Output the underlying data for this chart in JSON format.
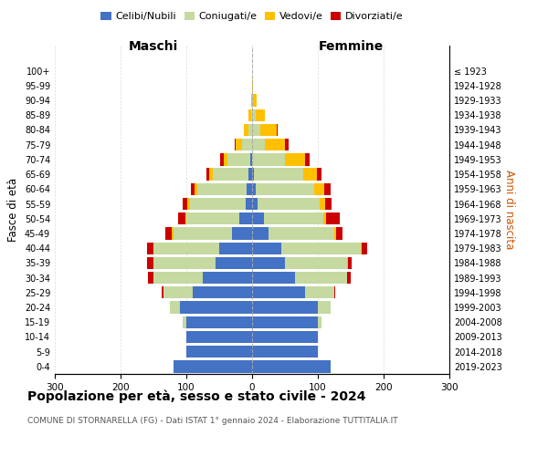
{
  "age_groups": [
    "100+",
    "95-99",
    "90-94",
    "85-89",
    "80-84",
    "75-79",
    "70-74",
    "65-69",
    "60-64",
    "55-59",
    "50-54",
    "45-49",
    "40-44",
    "35-39",
    "30-34",
    "25-29",
    "20-24",
    "15-19",
    "10-14",
    "5-9",
    "0-4"
  ],
  "birth_years": [
    "≤ 1923",
    "1924-1928",
    "1929-1933",
    "1934-1938",
    "1939-1943",
    "1944-1948",
    "1949-1953",
    "1954-1958",
    "1959-1963",
    "1964-1968",
    "1969-1973",
    "1974-1978",
    "1979-1983",
    "1984-1988",
    "1989-1993",
    "1994-1998",
    "1999-2003",
    "2004-2008",
    "2009-2013",
    "2014-2018",
    "2019-2023"
  ],
  "colors": {
    "celibi": "#4472c4",
    "coniugati": "#c5d9a0",
    "vedovi": "#ffc000",
    "divorziati": "#cc0000"
  },
  "m_cel": [
    120,
    100,
    100,
    100,
    110,
    90,
    75,
    55,
    50,
    30,
    20,
    10,
    8,
    5,
    3,
    0,
    0,
    0,
    0,
    0,
    0
  ],
  "m_con": [
    0,
    0,
    0,
    5,
    15,
    45,
    75,
    95,
    100,
    90,
    80,
    85,
    75,
    55,
    35,
    15,
    5,
    2,
    0,
    0,
    0
  ],
  "m_ved": [
    0,
    0,
    0,
    0,
    0,
    0,
    0,
    0,
    0,
    2,
    2,
    3,
    5,
    5,
    5,
    10,
    8,
    3,
    1,
    0,
    0
  ],
  "m_div": [
    0,
    0,
    0,
    0,
    0,
    3,
    8,
    10,
    10,
    10,
    10,
    8,
    5,
    5,
    5,
    2,
    0,
    0,
    0,
    0,
    0
  ],
  "f_cel": [
    120,
    100,
    100,
    100,
    100,
    80,
    65,
    50,
    45,
    25,
    18,
    8,
    5,
    3,
    0,
    0,
    0,
    0,
    0,
    0,
    0
  ],
  "f_con": [
    0,
    0,
    0,
    5,
    20,
    45,
    80,
    95,
    120,
    100,
    90,
    95,
    90,
    75,
    50,
    20,
    12,
    5,
    2,
    0,
    0
  ],
  "f_ved": [
    0,
    0,
    0,
    0,
    0,
    0,
    0,
    1,
    2,
    3,
    5,
    8,
    15,
    20,
    30,
    30,
    25,
    15,
    5,
    2,
    0
  ],
  "f_div": [
    0,
    0,
    0,
    0,
    0,
    2,
    5,
    5,
    8,
    10,
    20,
    10,
    10,
    8,
    8,
    5,
    2,
    0,
    0,
    0,
    0
  ],
  "xlim": 300,
  "title": "Popolazione per età, sesso e stato civile - 2024",
  "subtitle": "COMUNE DI STORNARELLA (FG) - Dati ISTAT 1° gennaio 2024 - Elaborazione TUTTITALIA.IT",
  "ylabel_left": "Fasce di età",
  "ylabel_right": "Anni di nascita",
  "xlabel_maschi": "Maschi",
  "xlabel_femmine": "Femmine"
}
